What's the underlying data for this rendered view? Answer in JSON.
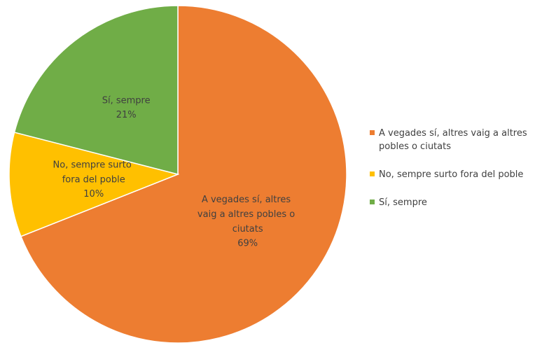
{
  "chart_data": {
    "type": "pie",
    "categories": [
      "A vegades sí, altres vaig a altres pobles o ciutats",
      "No, sempre surto fora del poble",
      "Sí, sempre"
    ],
    "values": [
      69,
      10,
      21
    ],
    "value_labels": [
      "69%",
      "10%",
      "21%"
    ],
    "colors": [
      "#ed7d31",
      "#ffc000",
      "#70ad47"
    ],
    "legend": "right"
  }
}
